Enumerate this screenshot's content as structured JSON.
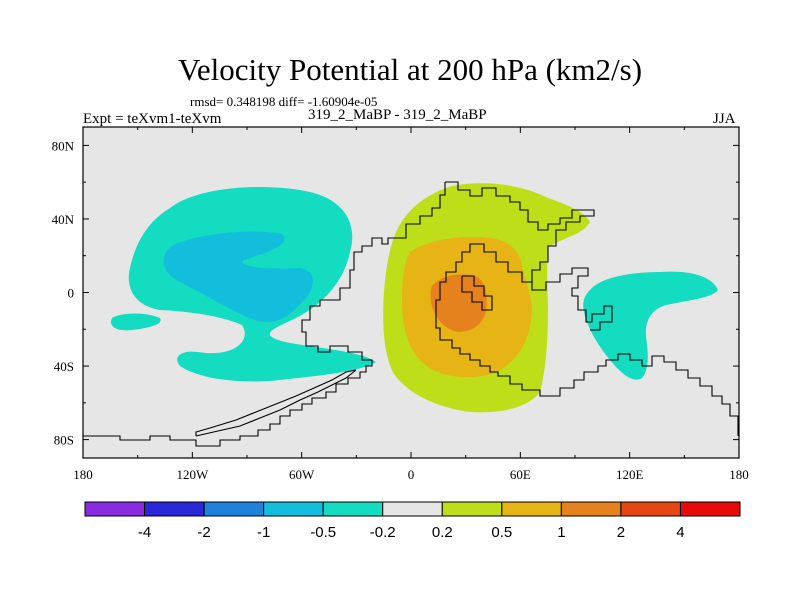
{
  "chart_data": {
    "type": "contour-map",
    "title": "Velocity Potential at 200 hPa (km2/s)",
    "stats": "rmsd= 0.348198 diff= -1.60904e-05",
    "experiment": "Expt = teXvm1-teXvm",
    "case": "319_2_MaBP - 319_2_MaBP",
    "season": "JJA",
    "x_ticks": [
      "180",
      "120W",
      "60W",
      "0",
      "60E",
      "120E",
      "180"
    ],
    "x_tick_values": [
      -180,
      -120,
      -60,
      0,
      60,
      120,
      180
    ],
    "y_ticks": [
      "80N",
      "40N",
      "0",
      "40S",
      "80S"
    ],
    "y_tick_values": [
      80,
      40,
      0,
      -40,
      -80
    ],
    "xlim": [
      -180,
      180
    ],
    "ylim": [
      -90,
      90
    ],
    "colorbar": {
      "colors": [
        "#8a2be2",
        "#2828d8",
        "#1e82dc",
        "#12bedc",
        "#14dcc0",
        "#e6e6e6",
        "#bede1a",
        "#e6b414",
        "#e6821e",
        "#e64614",
        "#e60a0a"
      ],
      "levels": [
        "-4",
        "-2",
        "-1",
        "-0.5",
        "-0.2",
        "0.2",
        "0.5",
        "1",
        "2",
        "4"
      ]
    },
    "regions": [
      {
        "name": "negative-region-pacific",
        "level": "-0.2 to -0.5"
      },
      {
        "name": "negative-region-pacific-core",
        "level": "-0.5 to -1"
      },
      {
        "name": "negative-region-south-pacific-island",
        "level": "-0.2 to -0.5"
      },
      {
        "name": "negative-region-maritime-continent",
        "level": "-0.2 to -0.5"
      },
      {
        "name": "positive-region-africa",
        "level": "0.2 to 0.5"
      },
      {
        "name": "positive-region-africa-inner",
        "level": "0.5 to 1"
      },
      {
        "name": "positive-region-africa-core",
        "level": "1 to 2"
      }
    ]
  }
}
